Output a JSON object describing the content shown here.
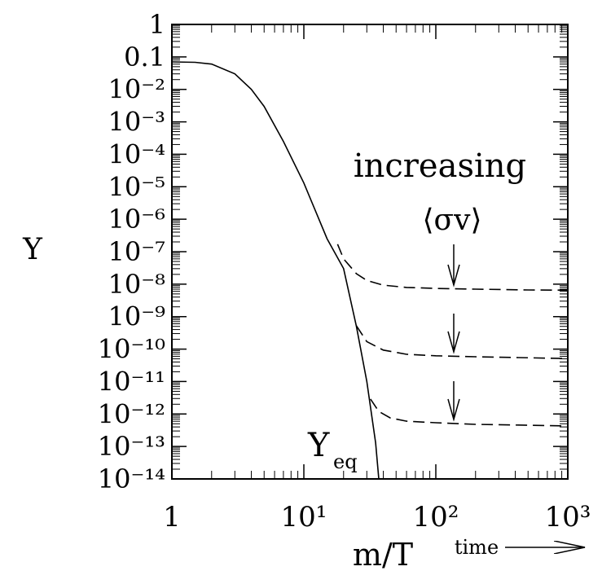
{
  "chart_data": {
    "type": "line",
    "xlabel": "m/T",
    "ylabel": "Y",
    "log_x": true,
    "log_y": true,
    "xlim": [
      1,
      1000
    ],
    "ylim": [
      1e-14,
      1
    ],
    "xticks": [
      1,
      {
        "value": 10,
        "label": "10¹"
      },
      {
        "value": 100,
        "label": "10²"
      },
      {
        "value": 1000,
        "label": "10³"
      }
    ],
    "yticks": [
      1,
      0.1,
      {
        "value": 0.01,
        "label": "10⁻²"
      },
      {
        "value": 0.001,
        "label": "10⁻³"
      },
      {
        "value": 0.0001,
        "label": "10⁻⁴"
      },
      {
        "value": 1e-05,
        "label": "10⁻⁵"
      },
      {
        "value": 1e-06,
        "label": "10⁻⁶"
      },
      {
        "value": 1e-07,
        "label": "10⁻⁷"
      },
      {
        "value": 1e-08,
        "label": "10⁻⁸"
      },
      {
        "value": 1e-09,
        "label": "10⁻⁹"
      },
      {
        "value": 1e-10,
        "label": "10⁻¹⁰"
      },
      {
        "value": 1e-11,
        "label": "10⁻¹¹"
      },
      {
        "value": 1e-12,
        "label": "10⁻¹²"
      },
      {
        "value": 1e-13,
        "label": "10⁻¹³"
      },
      {
        "value": 1e-14,
        "label": "10⁻¹⁴"
      }
    ],
    "series": [
      {
        "color": "#000",
        "dash": false,
        "x": [
          1,
          1.5,
          2,
          3,
          4,
          5,
          7,
          10,
          15,
          20,
          25,
          30,
          35,
          37
        ],
        "values": [
          0.07,
          0.068,
          0.06,
          0.03,
          0.01,
          0.003,
          0.00025,
          1.3e-05,
          2.5e-07,
          3e-08,
          5e-10,
          1e-11,
          1.3e-13,
          1e-14
        ]
      },
      {
        "color": "#000",
        "dash": true,
        "x": [
          18,
          20,
          25,
          30,
          40,
          60,
          100,
          200,
          500,
          1000
        ],
        "values": [
          1.7e-07,
          6e-08,
          2.1e-08,
          1.3e-08,
          9.3e-09,
          7.9e-09,
          7.4e-09,
          7e-09,
          6.6e-09,
          6.5e-09
        ]
      },
      {
        "color": "#000",
        "dash": true,
        "x": [
          25,
          30,
          40,
          60,
          100,
          200,
          1000
        ],
        "values": [
          5.2e-10,
          1.7e-10,
          9.3e-11,
          6.9e-11,
          6.2e-11,
          5.8e-11,
          5.1e-11
        ]
      },
      {
        "color": "#000",
        "dash": true,
        "x": [
          32,
          37,
          45,
          60,
          100,
          200,
          1000
        ],
        "values": [
          2.9e-12,
          1.2e-12,
          7.6e-13,
          6e-13,
          5.4e-13,
          4.8e-13,
          4.3e-13
        ]
      }
    ],
    "annotations": [
      "increasing",
      "⟨σv⟩",
      "time"
    ],
    "eq_label": {
      "text": "Y",
      "subscript": "eq"
    }
  }
}
